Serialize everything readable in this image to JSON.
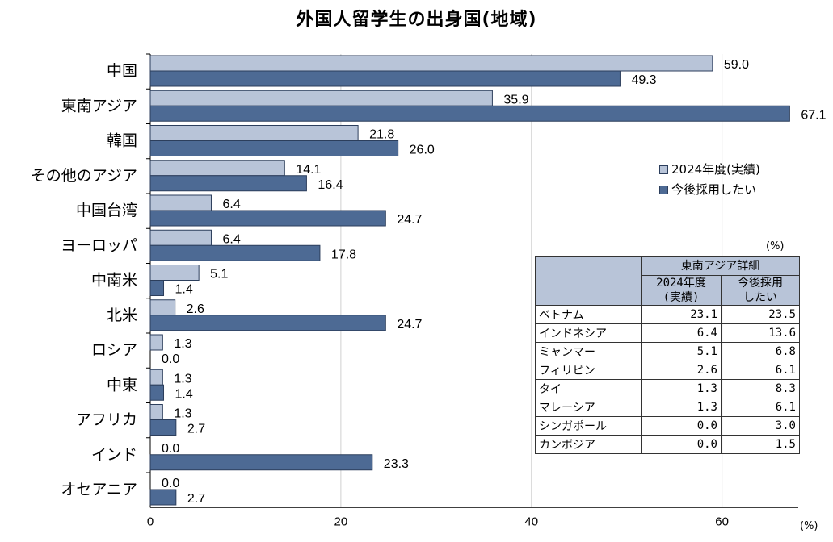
{
  "title": "外国人留学生の出身国(地域)",
  "colors": {
    "actual": "#b8c4d8",
    "planned": "#4d6a94",
    "border": "#2c3e5c"
  },
  "chart_data": {
    "type": "bar",
    "orientation": "horizontal",
    "title": "外国人留学生の出身国(地域)",
    "categories": [
      "中国",
      "東南アジア",
      "韓国",
      "その他のアジア",
      "中国台湾",
      "ヨーロッパ",
      "中南米",
      "北米",
      "ロシア",
      "中東",
      "アフリカ",
      "インド",
      "オセアニア"
    ],
    "series": [
      {
        "name": "2024年度(実績)",
        "values": [
          59.0,
          35.9,
          21.8,
          14.1,
          6.4,
          6.4,
          5.1,
          2.6,
          1.3,
          1.3,
          1.3,
          0.0,
          0.0
        ]
      },
      {
        "name": "今後採用したい",
        "values": [
          49.3,
          67.1,
          26.0,
          16.4,
          24.7,
          17.8,
          1.4,
          24.7,
          0.0,
          1.4,
          2.7,
          23.3,
          2.7
        ]
      }
    ],
    "xlim": [
      0,
      68
    ],
    "xticks": [
      0,
      20,
      40,
      60
    ],
    "xlabel": "(%)",
    "legend_position": "right"
  },
  "legend": {
    "actual": "2024年度(実績)",
    "planned": "今後採用したい"
  },
  "axis_unit": "(%)",
  "detail_table": {
    "unit": "(%)",
    "header": "東南アジア詳細",
    "col1": "2024年度\n(実績)",
    "col2": "今後採用\nしたい",
    "rows": [
      {
        "name": "ベトナム",
        "v1": "23.1",
        "v2": "23.5"
      },
      {
        "name": "インドネシア",
        "v1": "6.4",
        "v2": "13.6"
      },
      {
        "name": "ミャンマー",
        "v1": "5.1",
        "v2": "6.8"
      },
      {
        "name": "フィリピン",
        "v1": "2.6",
        "v2": "6.1"
      },
      {
        "name": "タイ",
        "v1": "1.3",
        "v2": "8.3"
      },
      {
        "name": "マレーシア",
        "v1": "1.3",
        "v2": "6.1"
      },
      {
        "name": "シンガポール",
        "v1": "0.0",
        "v2": "3.0"
      },
      {
        "name": "カンボジア",
        "v1": "0.0",
        "v2": "1.5"
      }
    ]
  }
}
